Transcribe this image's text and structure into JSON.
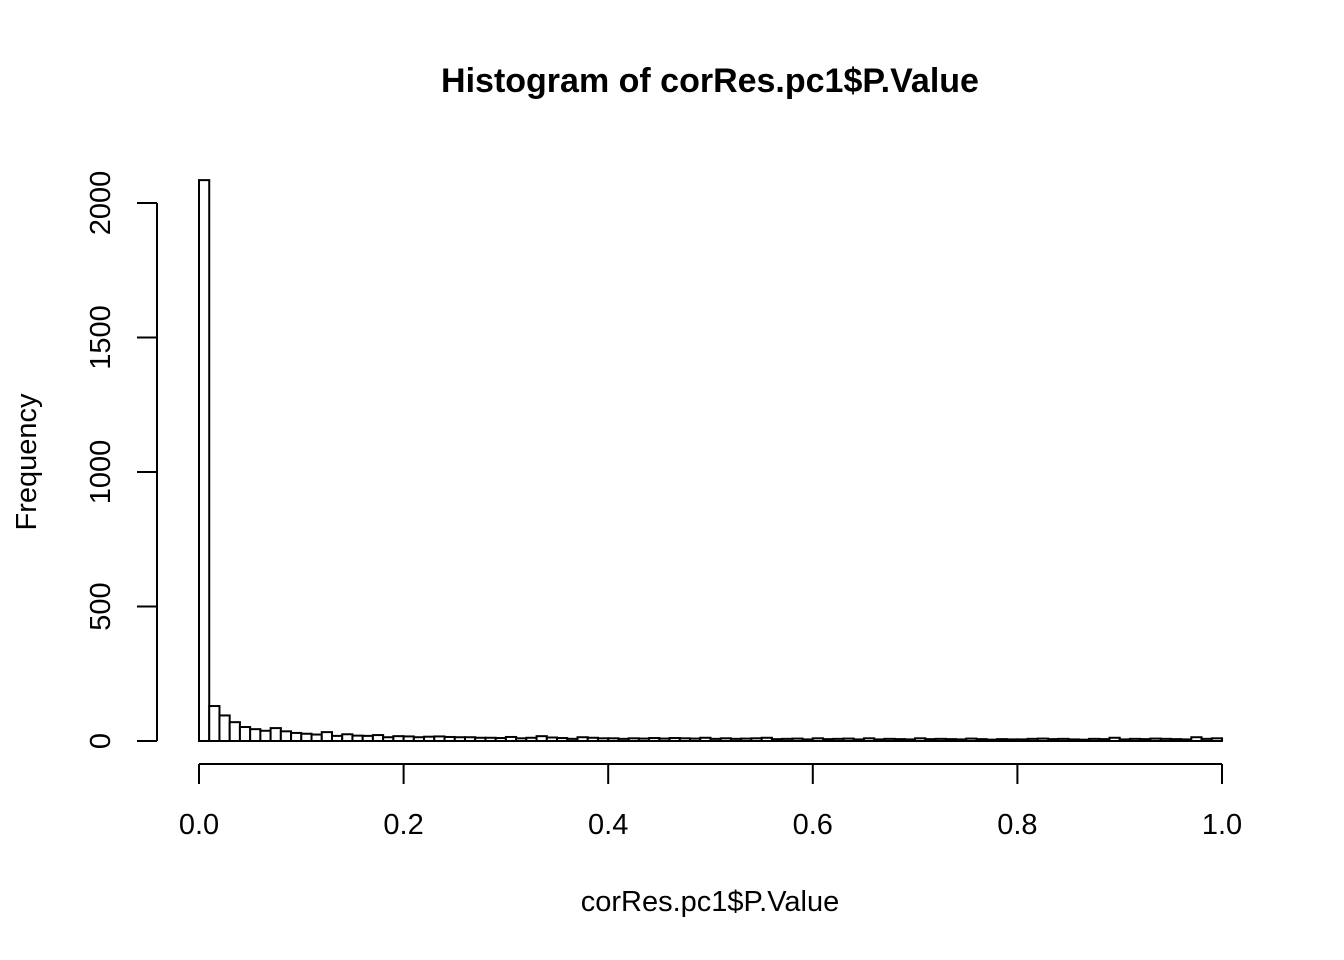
{
  "chart_data": {
    "type": "bar",
    "title": "Histogram of corRes.pc1$P.Value",
    "xlabel": "corRes.pc1$P.Value",
    "ylabel": "Frequency",
    "xlim": [
      0,
      1
    ],
    "ylim": [
      0,
      2000
    ],
    "bin_width": 0.01,
    "x_ticks": [
      0,
      0.2,
      0.4,
      0.6,
      0.8,
      1
    ],
    "x_tick_labels": [
      "0.0",
      "0.2",
      "0.4",
      "0.6",
      "0.8",
      "1.0"
    ],
    "y_ticks": [
      0,
      500,
      1000,
      1500,
      2000
    ],
    "y_tick_labels": [
      "0",
      "500",
      "1000",
      "1500",
      "2000"
    ],
    "grid": false,
    "legend": "none",
    "values": [
      2085,
      130,
      95,
      70,
      52,
      44,
      38,
      48,
      36,
      30,
      27,
      24,
      33,
      19,
      25,
      20,
      19,
      22,
      14,
      18,
      17,
      14,
      16,
      17,
      15,
      14,
      14,
      12,
      12,
      11,
      15,
      10,
      12,
      18,
      13,
      11,
      8,
      14,
      12,
      10,
      10,
      8,
      10,
      9,
      11,
      9,
      11,
      10,
      9,
      12,
      8,
      10,
      8,
      9,
      10,
      12,
      7,
      8,
      9,
      6,
      10,
      7,
      8,
      9,
      6,
      10,
      6,
      8,
      7,
      6,
      10,
      7,
      8,
      7,
      6,
      9,
      7,
      5,
      7,
      6,
      6,
      8,
      9,
      7,
      8,
      6,
      5,
      8,
      7,
      12,
      6,
      8,
      7,
      9,
      8,
      7,
      6,
      14,
      8,
      10
    ]
  }
}
